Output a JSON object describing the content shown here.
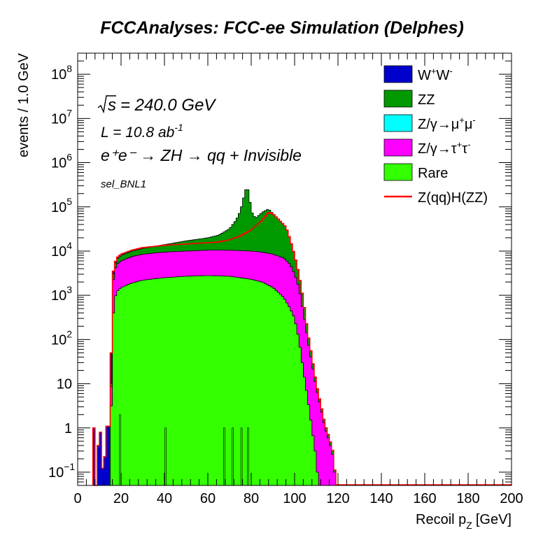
{
  "chart_data": {
    "type": "area",
    "title": "FCCAnalyses: FCC-ee Simulation (Delphes)",
    "xlabel": "Recoil p",
    "xlabel_sub": "Z",
    "xlabel_unit": "[GeV]",
    "ylabel": "events / 1.0 GeV",
    "xlim": [
      0,
      200
    ],
    "ylim": [
      0.05,
      300000000
    ],
    "yscale": "log",
    "stacked": true,
    "legend_position": "top-right",
    "annotations": {
      "sqrt_s": "s",
      "energy": "= 240.0 GeV",
      "lumi_base": "L = 10.8 ab",
      "lumi_exp": "-1",
      "process": "e⁺e⁻ → ZH → qq + Invisible",
      "selection": "sel_BNL1"
    },
    "x_ticks": [
      0,
      20,
      40,
      60,
      80,
      100,
      120,
      140,
      160,
      180,
      200
    ],
    "y_ticks": [
      {
        "value": 0.1,
        "base": "10",
        "exp": "−1"
      },
      {
        "value": 1,
        "base": "1",
        "exp": ""
      },
      {
        "value": 10,
        "base": "10",
        "exp": ""
      },
      {
        "value": 100,
        "base": "10",
        "exp": "2"
      },
      {
        "value": 1000,
        "base": "10",
        "exp": "3"
      },
      {
        "value": 10000,
        "base": "10",
        "exp": "4"
      },
      {
        "value": 100000,
        "base": "10",
        "exp": "5"
      },
      {
        "value": 1000000,
        "base": "10",
        "exp": "6"
      },
      {
        "value": 10000000,
        "base": "10",
        "exp": "7"
      },
      {
        "value": 100000000,
        "base": "10",
        "exp": "8"
      }
    ],
    "series": [
      {
        "name": "Rare",
        "color": "#33ff00",
        "points": [
          [
            15,
            0.05
          ],
          [
            16,
            200
          ],
          [
            17,
            800
          ],
          [
            18,
            1200
          ],
          [
            20,
            1500
          ],
          [
            25,
            1900
          ],
          [
            30,
            2200
          ],
          [
            40,
            2500
          ],
          [
            50,
            2700
          ],
          [
            60,
            2800
          ],
          [
            70,
            2700
          ],
          [
            80,
            2300
          ],
          [
            85,
            2000
          ],
          [
            90,
            1500
          ],
          [
            95,
            900
          ],
          [
            98,
            500
          ],
          [
            100,
            300
          ],
          [
            102,
            100
          ],
          [
            104,
            20
          ],
          [
            106,
            5
          ],
          [
            108,
            1
          ],
          [
            110,
            0.2
          ],
          [
            111,
            0.05
          ]
        ],
        "spikes": [
          [
            19.5,
            2
          ],
          [
            40.5,
            1
          ],
          [
            67.5,
            1
          ],
          [
            71.5,
            1
          ],
          [
            75.5,
            1
          ],
          [
            78.5,
            1
          ]
        ]
      },
      {
        "name": "Z/γ→μ⁺μ⁻",
        "color": "#00ffff",
        "points": [
          [
            97,
            0.05
          ],
          [
            98,
            0.1
          ],
          [
            99,
            0.5
          ],
          [
            100,
            1.5
          ],
          [
            101,
            4
          ],
          [
            102,
            10
          ],
          [
            103,
            15
          ],
          [
            104,
            10
          ],
          [
            105,
            4
          ],
          [
            106,
            1
          ],
          [
            107,
            0.3
          ],
          [
            108,
            0.05
          ]
        ]
      },
      {
        "name": "Z/γ→τ⁺τ⁻",
        "color": "#ff00ff",
        "points": [
          [
            15,
            0.05
          ],
          [
            16,
            1500
          ],
          [
            17,
            3500
          ],
          [
            18,
            5000
          ],
          [
            20,
            6000
          ],
          [
            25,
            7500
          ],
          [
            30,
            8500
          ],
          [
            40,
            9500
          ],
          [
            50,
            10000
          ],
          [
            60,
            10500
          ],
          [
            70,
            10500
          ],
          [
            80,
            10000
          ],
          [
            85,
            9500
          ],
          [
            90,
            8500
          ],
          [
            95,
            7000
          ],
          [
            98,
            5000
          ],
          [
            100,
            3000
          ],
          [
            102,
            1500
          ],
          [
            104,
            400
          ],
          [
            106,
            100
          ],
          [
            108,
            30
          ],
          [
            110,
            8
          ],
          [
            112,
            3
          ],
          [
            114,
            1
          ],
          [
            116,
            0.5
          ],
          [
            118,
            0.2
          ],
          [
            119,
            0.05
          ]
        ]
      },
      {
        "name": "ZZ",
        "color": "#009900",
        "points": [
          [
            15,
            0.05
          ],
          [
            16,
            2000
          ],
          [
            17,
            4500
          ],
          [
            18,
            6500
          ],
          [
            20,
            8000
          ],
          [
            25,
            10000
          ],
          [
            30,
            11500
          ],
          [
            40,
            14000
          ],
          [
            50,
            17000
          ],
          [
            60,
            20000
          ],
          [
            65,
            23000
          ],
          [
            70,
            32000
          ],
          [
            73,
            50000
          ],
          [
            75,
            80000
          ],
          [
            77,
            200000
          ],
          [
            78,
            300000
          ],
          [
            79,
            200000
          ],
          [
            80,
            80000
          ],
          [
            82,
            55000
          ],
          [
            85,
            75000
          ],
          [
            88,
            90000
          ],
          [
            90,
            70000
          ],
          [
            93,
            50000
          ],
          [
            96,
            35000
          ],
          [
            98,
            18000
          ],
          [
            100,
            8000
          ],
          [
            102,
            3000
          ],
          [
            104,
            800
          ],
          [
            106,
            150
          ],
          [
            108,
            40
          ],
          [
            110,
            10
          ],
          [
            112,
            3.5
          ],
          [
            114,
            1.2
          ],
          [
            116,
            0.6
          ],
          [
            118,
            0.25
          ],
          [
            119,
            0.05
          ]
        ]
      },
      {
        "name": "W⁺W⁻",
        "color": "#0000cc",
        "points": [
          [
            7,
            0.05
          ],
          [
            7.5,
            1
          ],
          [
            8.5,
            0.05
          ],
          [
            9.5,
            0.4
          ],
          [
            10.5,
            0.8
          ],
          [
            11,
            0.3
          ],
          [
            12,
            0.05
          ],
          [
            13,
            1
          ],
          [
            14,
            1.2
          ],
          [
            15,
            1
          ],
          [
            16,
            2500
          ],
          [
            17,
            5000
          ],
          [
            18,
            7000
          ],
          [
            20,
            8500
          ],
          [
            25,
            10500
          ],
          [
            30,
            12000
          ],
          [
            40,
            13500
          ],
          [
            50,
            14500
          ],
          [
            60,
            15500
          ],
          [
            65,
            16000
          ],
          [
            70,
            18000
          ],
          [
            75,
            22000
          ],
          [
            80,
            30000
          ],
          [
            85,
            50000
          ],
          [
            88,
            75000
          ],
          [
            90,
            70000
          ],
          [
            93,
            50000
          ],
          [
            96,
            35000
          ],
          [
            98,
            18000
          ],
          [
            100,
            8000
          ],
          [
            102,
            3000
          ],
          [
            104,
            800
          ],
          [
            106,
            150
          ],
          [
            108,
            40
          ],
          [
            110,
            10
          ],
          [
            112,
            3.5
          ],
          [
            114,
            1.2
          ],
          [
            116,
            0.6
          ],
          [
            118,
            0.25
          ],
          [
            119,
            0.05
          ]
        ]
      },
      {
        "name": "Z(qq)H(ZZ)",
        "color": "#ff0000",
        "line": true,
        "points": [
          [
            7,
            0.05
          ],
          [
            120,
            0.05
          ],
          [
            200,
            0.05
          ]
        ]
      }
    ]
  },
  "legend_order": [
    4,
    3,
    1,
    2,
    0,
    5
  ],
  "legend_labels": [
    {
      "base": "W",
      "s1": "+",
      "mid": "W",
      "s2": "-",
      "tail": ""
    },
    {
      "base": "ZZ",
      "s1": "",
      "mid": "",
      "s2": "",
      "tail": ""
    },
    {
      "base": "Z/γ→μ",
      "s1": "+",
      "mid": "μ",
      "s2": "-",
      "tail": ""
    },
    {
      "base": "Z/γ→τ",
      "s1": "+",
      "mid": "τ",
      "s2": "-",
      "tail": ""
    },
    {
      "base": "Rare",
      "s1": "",
      "mid": "",
      "s2": "",
      "tail": ""
    },
    {
      "base": "Z(qq)H(ZZ)",
      "s1": "",
      "mid": "",
      "s2": "",
      "tail": ""
    }
  ]
}
